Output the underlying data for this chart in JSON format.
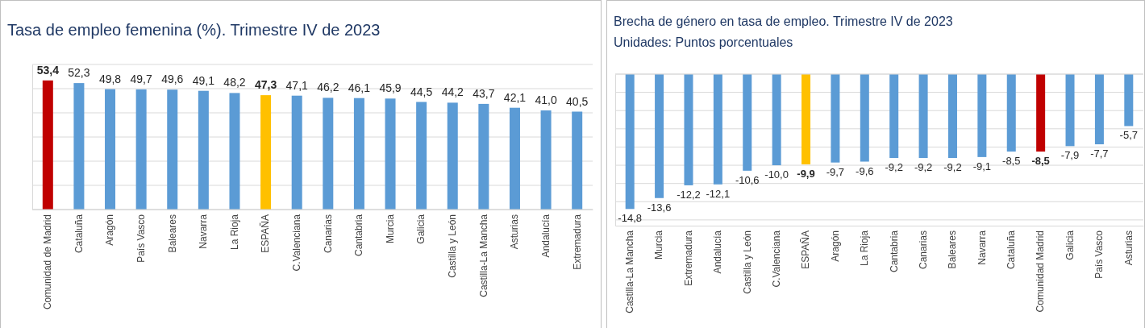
{
  "chart_data": [
    {
      "type": "bar",
      "title": "Tasa de empleo femenina (%). Trimestre IV de 2023",
      "categories": [
        "Comunidad de Madrid",
        "Cataluña",
        "Aragón",
        "País Vasco",
        "Baleares",
        "Navarra",
        "La Rioja",
        "ESPAÑA",
        "C.Valenciana",
        "Canarias",
        "Cantabria",
        "Murcia",
        "Galicia",
        "Castilla y León",
        "Castilla-La Mancha",
        "Asturias",
        "Andalucía",
        "Extremadura"
      ],
      "values": [
        53.4,
        52.3,
        49.8,
        49.7,
        49.6,
        49.1,
        48.2,
        47.3,
        47.1,
        46.2,
        46.1,
        45.9,
        44.5,
        44.2,
        43.7,
        42.1,
        41.0,
        40.5
      ],
      "value_labels": [
        "53,4",
        "52,3",
        "49,8",
        "49,7",
        "49,6",
        "49,1",
        "48,2",
        "47,3",
        "47,1",
        "46,2",
        "46,1",
        "45,9",
        "44,5",
        "44,2",
        "43,7",
        "42,1",
        "41,0",
        "40,5"
      ],
      "colors": [
        "#c00000",
        "#5b9bd5",
        "#5b9bd5",
        "#5b9bd5",
        "#5b9bd5",
        "#5b9bd5",
        "#5b9bd5",
        "#ffc000",
        "#5b9bd5",
        "#5b9bd5",
        "#5b9bd5",
        "#5b9bd5",
        "#5b9bd5",
        "#5b9bd5",
        "#5b9bd5",
        "#5b9bd5",
        "#5b9bd5",
        "#5b9bd5"
      ],
      "grid": "y",
      "tick_labels": "x"
    },
    {
      "type": "bar",
      "title": "Brecha de género en tasa de empleo. Trimestre IV de 2023",
      "subtitle": "Unidades: Puntos porcentuales",
      "categories": [
        "Castilla-La Mancha",
        "Murcia",
        "Extremadura",
        "Andalucía",
        "Castilla y León",
        "C.Valenciana",
        "ESPAÑA",
        "Aragón",
        "La Rioja",
        "Cantabria",
        "Canarias",
        "Baleares",
        "Navarra",
        "Cataluña",
        "Comunidad Madrid",
        "Galicia",
        "País Vasco",
        "Asturias"
      ],
      "values": [
        -14.8,
        -13.6,
        -12.2,
        -12.1,
        -10.6,
        -10.0,
        -9.9,
        -9.7,
        -9.6,
        -9.2,
        -9.2,
        -9.2,
        -9.1,
        -8.5,
        -8.5,
        -7.9,
        -7.7,
        -5.7
      ],
      "value_labels": [
        "-14,8",
        "-13,6",
        "-12,2",
        "-12,1",
        "-10,6",
        "-10,0",
        "-9,9",
        "-9,7",
        "-9,6",
        "-9,2",
        "-9,2",
        "-9,2",
        "-9,1",
        "-8,5",
        "-8,5",
        "-7,9",
        "-7,7",
        "-5,7"
      ],
      "colors": [
        "#5b9bd5",
        "#5b9bd5",
        "#5b9bd5",
        "#5b9bd5",
        "#5b9bd5",
        "#5b9bd5",
        "#ffc000",
        "#5b9bd5",
        "#5b9bd5",
        "#5b9bd5",
        "#5b9bd5",
        "#5b9bd5",
        "#5b9bd5",
        "#5b9bd5",
        "#c00000",
        "#5b9bd5",
        "#5b9bd5",
        "#5b9bd5"
      ],
      "grid": "y",
      "tick_labels": "x"
    }
  ]
}
